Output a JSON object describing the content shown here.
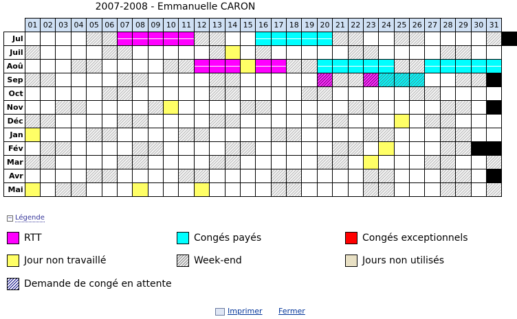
{
  "title": "2007-2008 - Emmanuelle CARON",
  "days": [
    "01",
    "02",
    "03",
    "04",
    "05",
    "06",
    "07",
    "08",
    "09",
    "10",
    "11",
    "12",
    "13",
    "14",
    "15",
    "16",
    "17",
    "18",
    "19",
    "20",
    "21",
    "22",
    "23",
    "24",
    "25",
    "26",
    "27",
    "28",
    "29",
    "30",
    "31"
  ],
  "months": [
    {
      "label": "Jul",
      "cells": "____WWRRRRRWW__PPPPPWW__WW____WK"
    },
    {
      "label": "Juil",
      "cells": "W____WW_____WY_W_____WW____WW__"
    },
    {
      "label": "Aoû",
      "cells": "___WW____WWRRRYRRWWPPPPPWWPPPPP"
    },
    {
      "label": "Sep",
      "cells": "WW____WW____WW_____TWWSHHH__WWK"
    },
    {
      "label": "Oct",
      "cells": "_____WW_____WW____WW_____WW____"
    },
    {
      "label": "Nov",
      "cells": "__WW____WY____WW_____WW____WW_K"
    },
    {
      "label": "Déc",
      "cells": "WW____WW____WW_____WW___Y_WW___"
    },
    {
      "label": "Jan",
      "cells": "Y___WW____WW____WW____WW___WW__"
    },
    {
      "label": "Fév",
      "cells": "_WW____WW____WW_____WW_Y___WWKK"
    },
    {
      "label": "Mar",
      "cells": "WW____WW____WW_____WW_Y___WW__W"
    },
    {
      "label": "Avr",
      "cells": "____WW____WW____WW____WW___WW_K"
    },
    {
      "label": "Mai",
      "cells": "Y_WW___Y___Y____WW____WW___WW_W"
    }
  ],
  "legend_toggle": "Légende",
  "legend": [
    {
      "key": "rtt",
      "label": "RTT",
      "color": "#ff00ff"
    },
    {
      "key": "conges",
      "label": "Congés payés",
      "color": "#00ffff"
    },
    {
      "key": "exceptionnels",
      "label": "Congés exceptionnels",
      "color": "#ff0000"
    },
    {
      "key": "non-travaille",
      "label": "Jour non travaillé",
      "color": "#ffff66"
    },
    {
      "key": "week-end",
      "label": "Week-end",
      "color": "#bbbbbb"
    },
    {
      "key": "non-utilises",
      "label": "Jours non utilisés",
      "color": "#e8e0c4"
    },
    {
      "key": "attente",
      "label": "Demande de congé en attente",
      "color": "#000080"
    }
  ],
  "links": {
    "print": "Imprimer",
    "close": "Fermer"
  }
}
